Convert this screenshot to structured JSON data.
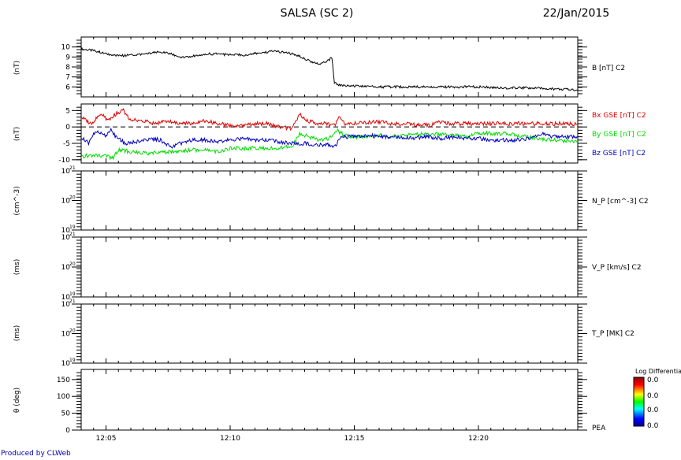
{
  "header": {
    "title": "SALSA (SC 2)",
    "date": "22/Jan/2015"
  },
  "credit": "Produced by CLWeb",
  "time_axis": {
    "start_min": 724,
    "end_min": 744,
    "ticks": [
      [
        "12:05",
        725
      ],
      [
        "12:10",
        730
      ],
      [
        "12:15",
        735
      ],
      [
        "12:20",
        740
      ]
    ]
  },
  "colors": {
    "black": "#000000",
    "red": "#e00000",
    "green": "#00dd00",
    "blue": "#0000c0"
  },
  "colorbar": {
    "title": "Log Differential",
    "ticks": [
      "0.0",
      "0.0",
      "0.0",
      "0.0"
    ]
  },
  "chart_data": [
    {
      "type": "line",
      "ylabel": "(nT)",
      "ylim": [
        5,
        11
      ],
      "yticks": [
        "6",
        "7",
        "8",
        "9",
        "10"
      ],
      "ytick_values": [
        6,
        7,
        8,
        9,
        10
      ],
      "legend": [
        "B [nT] C2"
      ],
      "series": [
        {
          "name": "B [nT] C2",
          "color": "black",
          "points": [
            [
              724.0,
              9.8
            ],
            [
              724.6,
              9.6
            ],
            [
              725.0,
              9.3
            ],
            [
              725.5,
              9.1
            ],
            [
              726.0,
              9.2
            ],
            [
              726.6,
              9.3
            ],
            [
              727.2,
              9.5
            ],
            [
              727.6,
              9.3
            ],
            [
              728.0,
              9.0
            ],
            [
              728.5,
              9.1
            ],
            [
              729.0,
              9.3
            ],
            [
              729.5,
              9.3
            ],
            [
              730.0,
              9.2
            ],
            [
              730.6,
              9.2
            ],
            [
              731.2,
              9.4
            ],
            [
              731.8,
              9.6
            ],
            [
              732.3,
              9.4
            ],
            [
              732.8,
              9.1
            ],
            [
              733.3,
              8.5
            ],
            [
              733.6,
              8.3
            ],
            [
              733.9,
              8.6
            ],
            [
              734.1,
              8.9
            ],
            [
              734.2,
              6.4
            ],
            [
              734.5,
              6.1
            ],
            [
              735.0,
              6.1
            ],
            [
              736.0,
              6.0
            ],
            [
              737.0,
              6.0
            ],
            [
              738.0,
              6.0
            ],
            [
              739.0,
              6.0
            ],
            [
              740.0,
              6.0
            ],
            [
              741.0,
              5.9
            ],
            [
              742.0,
              5.9
            ],
            [
              743.0,
              5.8
            ],
            [
              744.0,
              5.7
            ]
          ]
        }
      ]
    },
    {
      "type": "line",
      "ylabel": "(nT)",
      "ylim": [
        -11,
        7
      ],
      "yticks": [
        "-10",
        "-5",
        "0",
        "5"
      ],
      "ytick_values": [
        -10,
        -5,
        0,
        5
      ],
      "reference_line": 0,
      "legend": [
        "Bx GSE [nT] C2",
        "By GSE [nT] C2",
        "Bz GSE [nT] C2"
      ],
      "series": [
        {
          "name": "Bx GSE [nT] C2",
          "color": "red",
          "points": [
            [
              724.0,
              3
            ],
            [
              724.4,
              1
            ],
            [
              724.8,
              4
            ],
            [
              725.1,
              2
            ],
            [
              725.4,
              4
            ],
            [
              725.7,
              5
            ],
            [
              726.0,
              2
            ],
            [
              726.5,
              2
            ],
            [
              727.0,
              1
            ],
            [
              727.5,
              2
            ],
            [
              728.0,
              1
            ],
            [
              728.5,
              1
            ],
            [
              729.0,
              2
            ],
            [
              729.5,
              1
            ],
            [
              730.0,
              0.5
            ],
            [
              730.5,
              0.5
            ],
            [
              731.0,
              1
            ],
            [
              731.5,
              1
            ],
            [
              732.0,
              0
            ],
            [
              732.5,
              -0.5
            ],
            [
              732.8,
              4
            ],
            [
              733.1,
              2
            ],
            [
              733.5,
              1
            ],
            [
              733.9,
              1
            ],
            [
              734.2,
              0.5
            ],
            [
              734.4,
              3
            ],
            [
              734.6,
              1
            ],
            [
              735.0,
              1
            ],
            [
              735.5,
              1.5
            ],
            [
              736.0,
              1.5
            ],
            [
              736.5,
              1
            ],
            [
              737.0,
              1
            ],
            [
              738.0,
              0.5
            ],
            [
              738.5,
              1.5
            ],
            [
              739.0,
              1
            ],
            [
              740.0,
              1
            ],
            [
              740.5,
              1
            ],
            [
              741.0,
              1
            ],
            [
              742.0,
              1
            ],
            [
              743.0,
              1
            ],
            [
              744.0,
              1
            ]
          ]
        },
        {
          "name": "By GSE [nT] C2",
          "color": "green",
          "points": [
            [
              724.0,
              -9
            ],
            [
              724.5,
              -8.5
            ],
            [
              725.0,
              -9
            ],
            [
              725.3,
              -9.5
            ],
            [
              725.5,
              -7
            ],
            [
              726.0,
              -7.5
            ],
            [
              726.5,
              -8
            ],
            [
              727.0,
              -8
            ],
            [
              727.5,
              -7.5
            ],
            [
              728.0,
              -7.5
            ],
            [
              728.5,
              -7
            ],
            [
              729.0,
              -7
            ],
            [
              729.5,
              -7.5
            ],
            [
              730.0,
              -6.5
            ],
            [
              731.0,
              -6.5
            ],
            [
              731.5,
              -6.5
            ],
            [
              732.0,
              -6.5
            ],
            [
              732.5,
              -6
            ],
            [
              732.8,
              -2
            ],
            [
              733.2,
              -3
            ],
            [
              733.6,
              -4
            ],
            [
              734.0,
              -3.5
            ],
            [
              734.3,
              -1
            ],
            [
              734.6,
              -2.5
            ],
            [
              735.0,
              -3
            ],
            [
              735.5,
              -3
            ],
            [
              736.0,
              -2.5
            ],
            [
              736.5,
              -3
            ],
            [
              737.0,
              -2.5
            ],
            [
              738.0,
              -2
            ],
            [
              739.0,
              -2.5
            ],
            [
              739.5,
              -3
            ],
            [
              740.0,
              -2
            ],
            [
              741.0,
              -2
            ],
            [
              742.0,
              -3
            ],
            [
              743.0,
              -4
            ],
            [
              744.0,
              -4.5
            ]
          ]
        },
        {
          "name": "Bz GSE [nT] C2",
          "color": "blue",
          "points": [
            [
              724.0,
              -3
            ],
            [
              724.3,
              -5
            ],
            [
              724.6,
              -1
            ],
            [
              725.0,
              -3
            ],
            [
              725.2,
              -1
            ],
            [
              725.4,
              -3
            ],
            [
              725.8,
              -5
            ],
            [
              726.3,
              -4.5
            ],
            [
              726.8,
              -3.5
            ],
            [
              727.2,
              -4
            ],
            [
              727.6,
              -6
            ],
            [
              728.0,
              -5
            ],
            [
              728.5,
              -4
            ],
            [
              729.0,
              -4
            ],
            [
              729.5,
              -4.5
            ],
            [
              730.0,
              -4
            ],
            [
              730.5,
              -3.5
            ],
            [
              731.0,
              -4
            ],
            [
              731.5,
              -4
            ],
            [
              732.0,
              -4.5
            ],
            [
              732.5,
              -5
            ],
            [
              733.0,
              -5
            ],
            [
              733.5,
              -5.5
            ],
            [
              734.0,
              -5.5
            ],
            [
              734.2,
              -6
            ],
            [
              734.5,
              -3
            ],
            [
              735.0,
              -3
            ],
            [
              735.5,
              -2.5
            ],
            [
              736.0,
              -3
            ],
            [
              736.5,
              -3
            ],
            [
              737.0,
              -3.5
            ],
            [
              738.0,
              -3
            ],
            [
              738.5,
              -3.5
            ],
            [
              739.0,
              -3
            ],
            [
              739.5,
              -3.5
            ],
            [
              740.0,
              -3.5
            ],
            [
              740.5,
              -4
            ],
            [
              741.0,
              -4
            ],
            [
              741.5,
              -4
            ],
            [
              742.0,
              -3.5
            ],
            [
              742.5,
              -2
            ],
            [
              743.0,
              -3
            ],
            [
              743.5,
              -3
            ],
            [
              744.0,
              -3
            ]
          ]
        }
      ]
    },
    {
      "type": "line",
      "ylabel": "(cm^-3)",
      "log_scale": true,
      "ylim": [
        1e+19,
        1e+21
      ],
      "yticks": [
        "10",
        "10",
        "10"
      ],
      "ytick_exponents": [
        "21",
        "20",
        "19"
      ],
      "ytick_values": [
        1e+21,
        1e+20,
        1e+19
      ],
      "legend": [
        "N_P [cm^-3] C2"
      ],
      "series": []
    },
    {
      "type": "line",
      "ylabel": "(ms)",
      "log_scale": true,
      "ylim": [
        1e+19,
        1e+21
      ],
      "yticks": [
        "10",
        "10",
        "10"
      ],
      "ytick_exponents": [
        "21",
        "20",
        "19"
      ],
      "ytick_values": [
        1e+21,
        1e+20,
        1e+19
      ],
      "legend": [
        "V_P [km/s] C2"
      ],
      "series": []
    },
    {
      "type": "line",
      "ylabel": "(ms)",
      "log_scale": true,
      "ylim": [
        1e+19,
        1e+21
      ],
      "yticks": [
        "10",
        "10",
        "10"
      ],
      "ytick_exponents": [
        "21",
        "20",
        "19"
      ],
      "ytick_values": [
        1e+21,
        1e+20,
        1e+19
      ],
      "legend": [
        "T_P [MK] C2"
      ],
      "series": []
    },
    {
      "type": "heatmap",
      "ylabel": "θ (deg)",
      "ylim": [
        0,
        180
      ],
      "yticks": [
        "0",
        "50",
        "100",
        "150"
      ],
      "ytick_values": [
        0,
        50,
        100,
        150
      ],
      "legend": [
        "PEA"
      ],
      "series": []
    }
  ]
}
